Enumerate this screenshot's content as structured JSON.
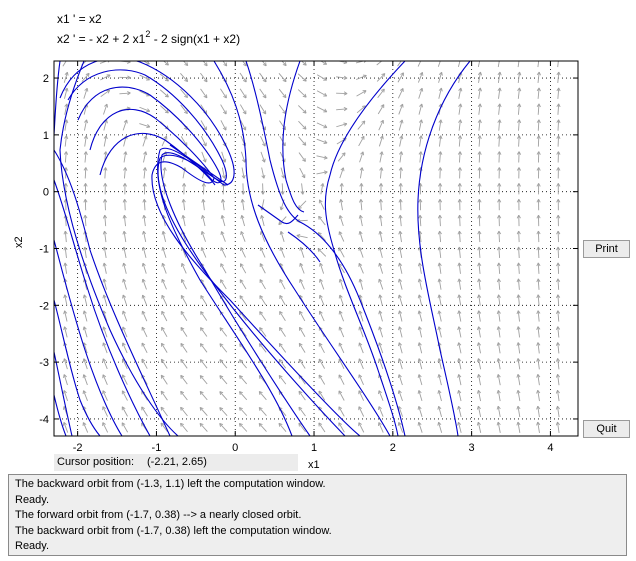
{
  "equations": {
    "line1": "x1 ' = x2",
    "line2_pre": "x2 ' = - x2 + 2 x1",
    "line2_sup": "2",
    "line2_post": " - 2 sign(x1 + x2)"
  },
  "axes": {
    "xlabel": "x1",
    "ylabel": "x2",
    "xticks": [
      "-2",
      "-1",
      "0",
      "1",
      "2",
      "3",
      "4"
    ],
    "yticks": [
      "2",
      "1",
      "0",
      "-1",
      "-2",
      "-3",
      "-4"
    ]
  },
  "buttons": {
    "print": "Print",
    "quit": "Quit"
  },
  "cursor": {
    "label": "Cursor position:",
    "value": "(-2.21, 2.65)"
  },
  "log": [
    "The backward orbit from (-1.3, 1.1) left the computation window.",
    "Ready.",
    "The forward orbit from (-1.7, 0.38) --> a nearly closed orbit.",
    "The backward orbit from (-1.7, 0.38) left the computation window.",
    "Ready."
  ],
  "colors": {
    "orbit": "#0000cc",
    "field_arrow": "#a0a0a0",
    "grid": "#000000"
  }
}
